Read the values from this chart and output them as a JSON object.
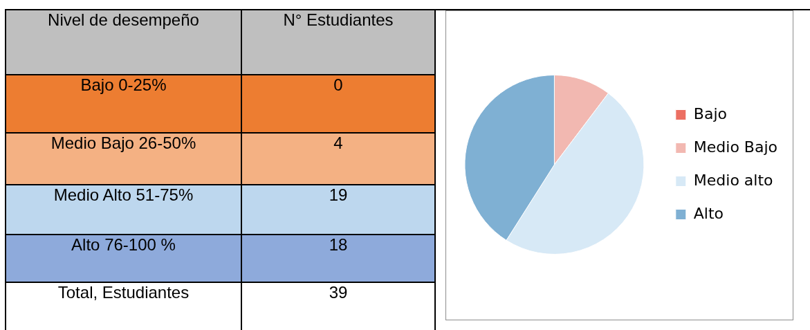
{
  "chart_data": [
    {
      "type": "other",
      "xlabel": "Nivel de desempeño",
      "ylabel": "N° Estudiantes",
      "categories": [
        "Bajo 0-25%",
        "Medio Bajo 26-50%",
        "Medio Alto 51-75%",
        "Alto 76-100 %",
        "Total, Estudiantes"
      ],
      "values": [
        0,
        4,
        19,
        18,
        39
      ],
      "colors": [
        "#ed7d31",
        "#f4b183",
        "#bdd7ee",
        "#8eaadb",
        "#ffffff"
      ],
      "data_labels": true
    },
    {
      "type": "pie",
      "categories": [
        "Bajo",
        "Medio Bajo",
        "Medio alto",
        "Alto"
      ],
      "values": [
        0,
        10.3,
        48.7,
        41.0
      ],
      "colors": [
        "#ec6f62",
        "#f2b8b1",
        "#d7e9f6",
        "#7fb0d3"
      ],
      "legend": "right"
    }
  ]
}
